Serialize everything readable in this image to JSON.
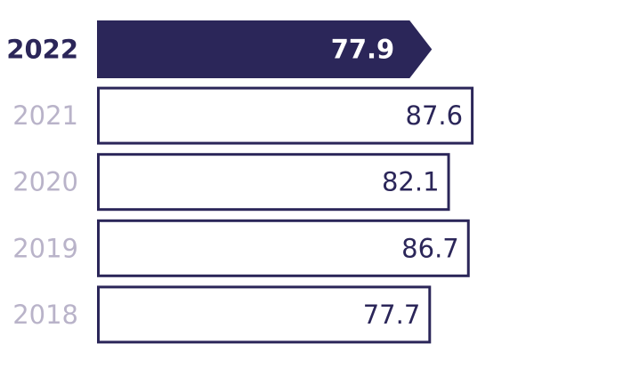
{
  "chart_data": {
    "type": "bar",
    "orientation": "horizontal",
    "categories": [
      "2022",
      "2021",
      "2020",
      "2019",
      "2018"
    ],
    "values": [
      77.9,
      87.6,
      82.1,
      86.7,
      77.7
    ],
    "color": "#2b2659",
    "highlight": "2022",
    "label_color": "#b9b3c9"
  }
}
